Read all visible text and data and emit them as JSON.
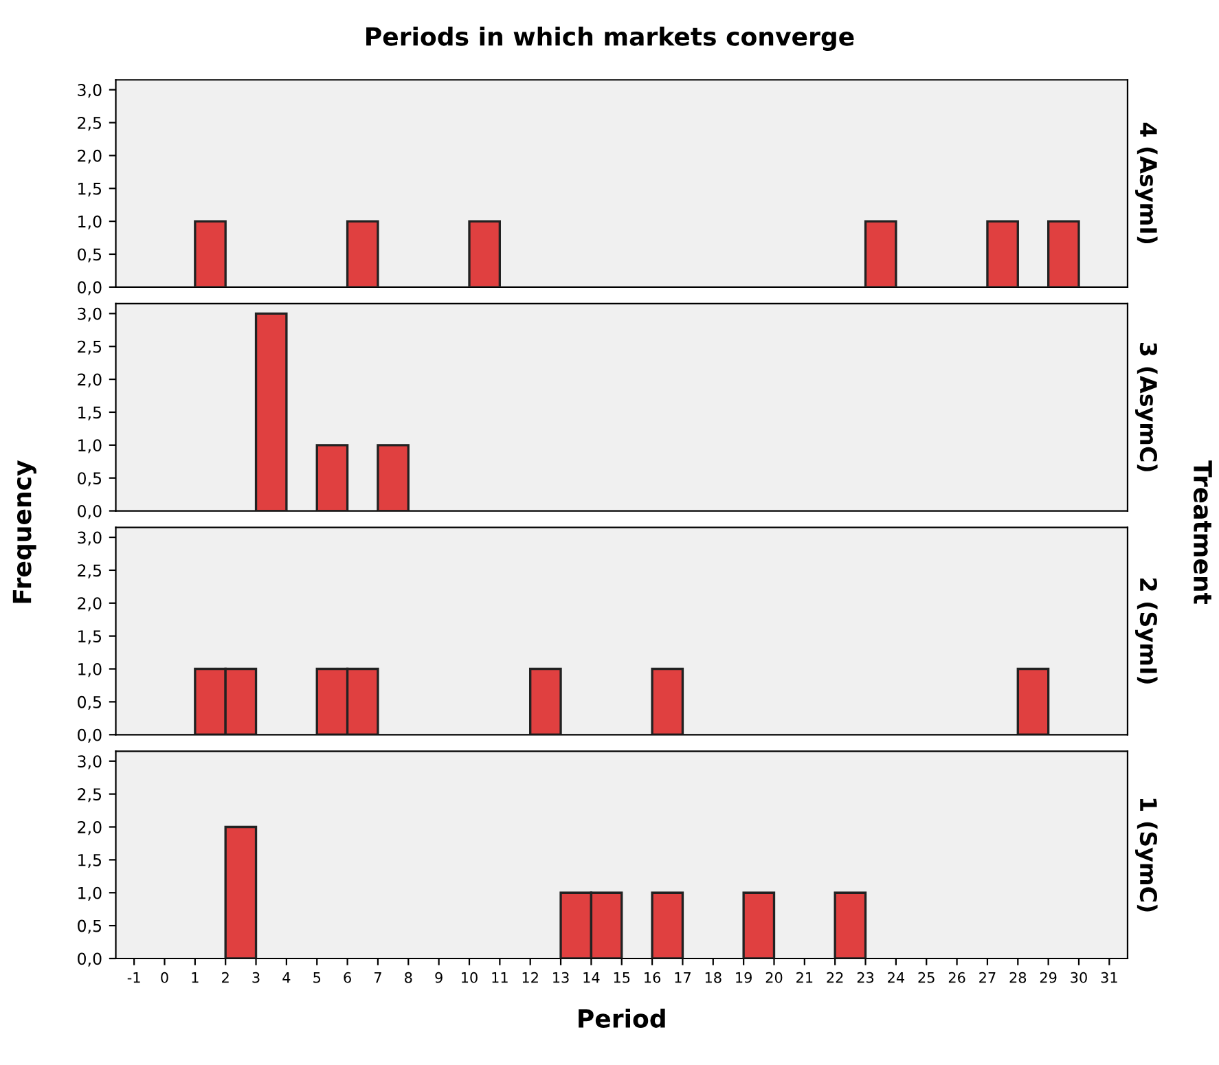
{
  "chart_data": [
    {
      "type": "histogram",
      "title": "Periods in which markets converge",
      "annotations": [
        "Frequency",
        "Treatment"
      ],
      "y2label": "4 (AsymI)",
      "color": "#e04040",
      "bins": [
        1,
        2,
        3,
        4,
        5,
        6,
        7,
        8,
        9,
        10,
        11,
        12,
        13,
        14,
        15,
        16,
        17,
        18,
        19,
        20,
        21,
        22,
        23,
        24,
        25,
        26,
        27,
        28,
        29,
        30
      ],
      "values": [
        1,
        0,
        0,
        0,
        0,
        1,
        0,
        0,
        0,
        1,
        0,
        0,
        0,
        0,
        0,
        0,
        0,
        0,
        0,
        0,
        0,
        0,
        1,
        0,
        0,
        0,
        1,
        0,
        1
      ],
      "xlim": [
        -1.6,
        31.6
      ],
      "ylim": [
        0,
        3.15
      ],
      "yticks": [
        {
          "value": 0,
          "label": "0,0"
        },
        {
          "value": 0.5,
          "label": "0,5"
        },
        {
          "value": 1,
          "label": "1,0"
        },
        {
          "value": 1.5,
          "label": "1,5"
        },
        {
          "value": 2,
          "label": "2,0"
        },
        {
          "value": 2.5,
          "label": "2,5"
        },
        {
          "value": 3,
          "label": "3,0"
        }
      ],
      "tick_labels": "y",
      "grid": false,
      "legend": false
    },
    {
      "type": "histogram",
      "y2label": "3 (AsymC)",
      "color": "#e04040",
      "bins": [
        3,
        4,
        5,
        6,
        7,
        8
      ],
      "values": [
        3,
        0,
        1,
        0,
        1
      ],
      "xlim": [
        -1.6,
        31.6
      ],
      "ylim": [
        0,
        3.15
      ],
      "yticks": [
        {
          "value": 0,
          "label": "0,0"
        },
        {
          "value": 0.5,
          "label": "0,5"
        },
        {
          "value": 1,
          "label": "1,0"
        },
        {
          "value": 1.5,
          "label": "1,5"
        },
        {
          "value": 2,
          "label": "2,0"
        },
        {
          "value": 2.5,
          "label": "2,5"
        },
        {
          "value": 3,
          "label": "3,0"
        }
      ],
      "tick_labels": "y",
      "grid": false,
      "legend": false
    },
    {
      "type": "histogram",
      "y2label": "2 (SymI)",
      "color": "#e04040",
      "bins": [
        1,
        2,
        3,
        4,
        5,
        6,
        7,
        8,
        9,
        10,
        11,
        12,
        13,
        14,
        15,
        16,
        17,
        18,
        19,
        20,
        21,
        22,
        23,
        24,
        25,
        26,
        27,
        28,
        29
      ],
      "values": [
        1,
        1,
        0,
        0,
        1,
        1,
        0,
        0,
        0,
        0,
        0,
        1,
        0,
        0,
        0,
        1,
        0,
        0,
        0,
        0,
        0,
        0,
        0,
        0,
        0,
        0,
        0,
        1
      ],
      "xlim": [
        -1.6,
        31.6
      ],
      "ylim": [
        0,
        3.15
      ],
      "yticks": [
        {
          "value": 0,
          "label": "0,0"
        },
        {
          "value": 0.5,
          "label": "0,5"
        },
        {
          "value": 1,
          "label": "1,0"
        },
        {
          "value": 1.5,
          "label": "1,5"
        },
        {
          "value": 2,
          "label": "2,0"
        },
        {
          "value": 2.5,
          "label": "2,5"
        },
        {
          "value": 3,
          "label": "3,0"
        }
      ],
      "tick_labels": "y",
      "grid": false,
      "legend": false
    },
    {
      "type": "histogram",
      "y2label": "1 (SymC)",
      "xlabel": "Period",
      "color": "#e04040",
      "bins": [
        2,
        3,
        4,
        5,
        6,
        7,
        8,
        9,
        10,
        11,
        12,
        13,
        14,
        15,
        16,
        17,
        18,
        19,
        20,
        21,
        22,
        23
      ],
      "values": [
        2,
        0,
        0,
        0,
        0,
        0,
        0,
        0,
        0,
        0,
        0,
        1,
        1,
        0,
        1,
        0,
        0,
        1,
        0,
        0,
        1
      ],
      "xlim": [
        -1.6,
        31.6
      ],
      "xticks": [
        -1,
        0,
        1,
        2,
        3,
        4,
        5,
        6,
        7,
        8,
        9,
        10,
        11,
        12,
        13,
        14,
        15,
        16,
        17,
        18,
        19,
        20,
        21,
        22,
        23,
        24,
        25,
        26,
        27,
        28,
        29,
        30,
        31
      ],
      "ylim": [
        0,
        3.15
      ],
      "yticks": [
        {
          "value": 0,
          "label": "0,0"
        },
        {
          "value": 0.5,
          "label": "0,5"
        },
        {
          "value": 1,
          "label": "1,0"
        },
        {
          "value": 1.5,
          "label": "1,5"
        },
        {
          "value": 2,
          "label": "2,0"
        },
        {
          "value": 2.5,
          "label": "2,5"
        },
        {
          "value": 3,
          "label": "3,0"
        }
      ],
      "grid": false,
      "legend": false
    }
  ]
}
